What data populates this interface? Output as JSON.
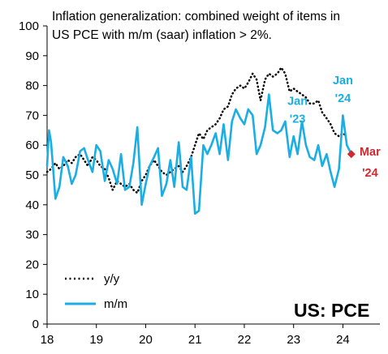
{
  "chart_data": {
    "type": "line",
    "title": [
      "Inflation generalization: combined weight of items in",
      "US PCE with m/m (saar) inflation > 2%."
    ],
    "xlabel": "",
    "ylabel": "",
    "brand": "US: PCE",
    "ylim": [
      0,
      100
    ],
    "yticks": [
      0,
      10,
      20,
      30,
      40,
      50,
      60,
      70,
      80,
      90,
      100
    ],
    "xlim": [
      2018.0,
      2024.75
    ],
    "xticks": [
      2018,
      2019,
      2020,
      2021,
      2022,
      2023,
      2024
    ],
    "xtick_labels": [
      "18",
      "19",
      "20",
      "21",
      "22",
      "23",
      "24"
    ],
    "grid": false,
    "legend_position": "bottom-left",
    "series": [
      {
        "name": "y/y",
        "style": "dotted",
        "color": "#000000",
        "points": [
          [
            2018.0,
            51
          ],
          [
            2018.08,
            52
          ],
          [
            2018.17,
            54
          ],
          [
            2018.25,
            52
          ],
          [
            2018.33,
            53
          ],
          [
            2018.42,
            55
          ],
          [
            2018.5,
            54
          ],
          [
            2018.58,
            56
          ],
          [
            2018.67,
            57
          ],
          [
            2018.75,
            55
          ],
          [
            2018.83,
            53
          ],
          [
            2018.92,
            56
          ],
          [
            2019.0,
            55
          ],
          [
            2019.08,
            53
          ],
          [
            2019.17,
            52
          ],
          [
            2019.25,
            49
          ],
          [
            2019.33,
            45
          ],
          [
            2019.42,
            48
          ],
          [
            2019.5,
            47
          ],
          [
            2019.58,
            46
          ],
          [
            2019.67,
            47
          ],
          [
            2019.75,
            45
          ],
          [
            2019.83,
            44
          ],
          [
            2019.92,
            48
          ],
          [
            2020.0,
            50
          ],
          [
            2020.08,
            53
          ],
          [
            2020.17,
            55
          ],
          [
            2020.25,
            53
          ],
          [
            2020.33,
            51
          ],
          [
            2020.42,
            50
          ],
          [
            2020.5,
            51
          ],
          [
            2020.58,
            52
          ],
          [
            2020.67,
            53
          ],
          [
            2020.75,
            51
          ],
          [
            2020.83,
            53
          ],
          [
            2020.92,
            56
          ],
          [
            2021.0,
            60
          ],
          [
            2021.08,
            64
          ],
          [
            2021.17,
            62
          ],
          [
            2021.25,
            65
          ],
          [
            2021.33,
            66
          ],
          [
            2021.42,
            67
          ],
          [
            2021.5,
            69
          ],
          [
            2021.58,
            72
          ],
          [
            2021.67,
            73
          ],
          [
            2021.75,
            77
          ],
          [
            2021.83,
            79
          ],
          [
            2021.92,
            80
          ],
          [
            2022.0,
            79
          ],
          [
            2022.08,
            81
          ],
          [
            2022.17,
            84
          ],
          [
            2022.25,
            82
          ],
          [
            2022.33,
            75
          ],
          [
            2022.42,
            82
          ],
          [
            2022.5,
            84
          ],
          [
            2022.58,
            83
          ],
          [
            2022.67,
            84
          ],
          [
            2022.75,
            86
          ],
          [
            2022.83,
            84
          ],
          [
            2022.92,
            78
          ],
          [
            2023.0,
            79
          ],
          [
            2023.08,
            78
          ],
          [
            2023.17,
            77
          ],
          [
            2023.25,
            76
          ],
          [
            2023.33,
            74
          ],
          [
            2023.42,
            74
          ],
          [
            2023.5,
            75
          ],
          [
            2023.58,
            71
          ],
          [
            2023.67,
            69
          ],
          [
            2023.75,
            67
          ],
          [
            2023.83,
            64
          ],
          [
            2023.92,
            63
          ],
          [
            2024.0,
            64
          ],
          [
            2024.08,
            63
          ]
        ]
      },
      {
        "name": "m/m",
        "style": "solid",
        "color": "#1aaee5",
        "points": [
          [
            2018.0,
            53
          ],
          [
            2018.04,
            65
          ],
          [
            2018.08,
            61
          ],
          [
            2018.17,
            42
          ],
          [
            2018.25,
            46
          ],
          [
            2018.33,
            56
          ],
          [
            2018.42,
            53
          ],
          [
            2018.5,
            47
          ],
          [
            2018.58,
            50
          ],
          [
            2018.67,
            58
          ],
          [
            2018.75,
            59
          ],
          [
            2018.83,
            55
          ],
          [
            2018.92,
            51
          ],
          [
            2019.0,
            60
          ],
          [
            2019.08,
            58
          ],
          [
            2019.17,
            48
          ],
          [
            2019.25,
            55
          ],
          [
            2019.33,
            52
          ],
          [
            2019.42,
            47
          ],
          [
            2019.5,
            57
          ],
          [
            2019.58,
            45
          ],
          [
            2019.67,
            46
          ],
          [
            2019.75,
            54
          ],
          [
            2019.83,
            66
          ],
          [
            2019.92,
            40
          ],
          [
            2020.0,
            47
          ],
          [
            2020.08,
            53
          ],
          [
            2020.17,
            56
          ],
          [
            2020.25,
            59
          ],
          [
            2020.33,
            43
          ],
          [
            2020.42,
            47
          ],
          [
            2020.5,
            55
          ],
          [
            2020.58,
            46
          ],
          [
            2020.67,
            61
          ],
          [
            2020.75,
            46
          ],
          [
            2020.83,
            45
          ],
          [
            2020.92,
            56
          ],
          [
            2021.0,
            37
          ],
          [
            2021.08,
            38
          ],
          [
            2021.17,
            60
          ],
          [
            2021.25,
            57
          ],
          [
            2021.33,
            60
          ],
          [
            2021.42,
            64
          ],
          [
            2021.5,
            57
          ],
          [
            2021.58,
            67
          ],
          [
            2021.67,
            55
          ],
          [
            2021.75,
            68
          ],
          [
            2021.83,
            72
          ],
          [
            2021.92,
            69
          ],
          [
            2022.0,
            67
          ],
          [
            2022.08,
            72
          ],
          [
            2022.17,
            70
          ],
          [
            2022.25,
            57
          ],
          [
            2022.33,
            60
          ],
          [
            2022.42,
            66
          ],
          [
            2022.5,
            77
          ],
          [
            2022.58,
            65
          ],
          [
            2022.67,
            64
          ],
          [
            2022.75,
            65
          ],
          [
            2022.83,
            68
          ],
          [
            2022.92,
            56
          ],
          [
            2023.0,
            63
          ],
          [
            2023.08,
            57
          ],
          [
            2023.17,
            68
          ],
          [
            2023.25,
            60
          ],
          [
            2023.33,
            56
          ],
          [
            2023.42,
            55
          ],
          [
            2023.5,
            60
          ],
          [
            2023.58,
            53
          ],
          [
            2023.67,
            57
          ],
          [
            2023.75,
            51
          ],
          [
            2023.83,
            46
          ],
          [
            2023.92,
            52
          ],
          [
            2024.0,
            70
          ],
          [
            2024.08,
            60
          ],
          [
            2024.17,
            57
          ]
        ]
      }
    ],
    "highlight_point": {
      "x": 2024.17,
      "y": 57,
      "color": "#d2282e"
    },
    "annotations": [
      {
        "text": "Jan",
        "x": 2024.0,
        "y": 80.5,
        "color": "#1aaee5"
      },
      {
        "text": "'24",
        "x": 2024.0,
        "y": 74.5,
        "color": "#1aaee5"
      },
      {
        "text": "Jan",
        "x": 2023.08,
        "y": 73.5,
        "color": "#1aaee5"
      },
      {
        "text": "'23",
        "x": 2023.08,
        "y": 67.5,
        "color": "#1aaee5"
      },
      {
        "text": "Mar",
        "x": 2024.55,
        "y": 56.5,
        "color": "#d2282e"
      },
      {
        "text": "'24",
        "x": 2024.55,
        "y": 49.5,
        "color": "#d2282e"
      }
    ]
  }
}
